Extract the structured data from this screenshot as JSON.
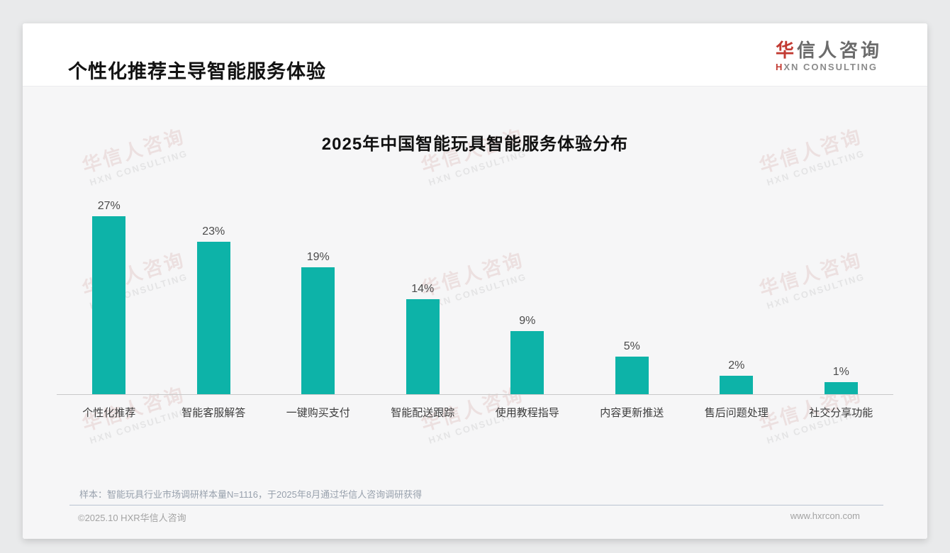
{
  "header": {
    "title": "个性化推荐主导智能服务体验",
    "logo": {
      "zh_accent": "华",
      "zh_rest": "信人咨询",
      "en_accent": "H",
      "en_rest": "XN CONSULTING"
    }
  },
  "watermark": {
    "zh": "华信人咨询",
    "en": "HXN CONSULTING"
  },
  "chart_data": {
    "type": "bar",
    "title": "2025年中国智能玩具智能服务体验分布",
    "categories": [
      "个性化推荐",
      "智能客服解答",
      "一键购买支付",
      "智能配送跟踪",
      "使用教程指导",
      "内容更新推送",
      "售后问题处理",
      "社交分享功能"
    ],
    "values": [
      27,
      23,
      19,
      14,
      9,
      5,
      2,
      1
    ],
    "value_labels": [
      "27%",
      "23%",
      "19%",
      "14%",
      "9%",
      "5%",
      "2%",
      "1%"
    ],
    "unit": "%",
    "ylim": [
      0,
      30
    ],
    "grid": false,
    "legend": "none",
    "bar_color": "#0db3a8"
  },
  "note": "样本：智能玩具行业市场调研样本量N=1116，于2025年8月通过华信人咨询调研获得",
  "footer": {
    "left": "©2025.10 HXR华信人咨询",
    "right": "www.hxrcon.com"
  },
  "colors": {
    "accent_red": "#c23a32",
    "bar_teal": "#0db3a8",
    "page_bg": "#e9eaeb",
    "panel_bg": "#f6f6f7"
  }
}
